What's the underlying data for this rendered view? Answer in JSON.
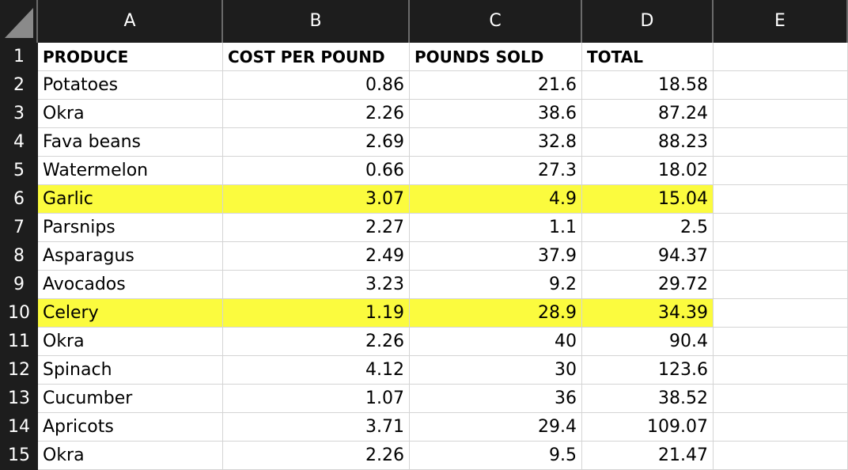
{
  "columns": [
    "A",
    "B",
    "C",
    "D",
    "E"
  ],
  "row_numbers": [
    "1",
    "2",
    "3",
    "4",
    "5",
    "6",
    "7",
    "8",
    "9",
    "10",
    "11",
    "12",
    "13",
    "14",
    "15"
  ],
  "header": {
    "produce": "PRODUCE",
    "cost": "COST PER POUND",
    "pounds": "POUNDS SOLD",
    "total": "TOTAL"
  },
  "rows": [
    {
      "produce": "Potatoes",
      "cost": "0.86",
      "pounds": "21.6",
      "total": "18.58",
      "highlight": false
    },
    {
      "produce": "Okra",
      "cost": "2.26",
      "pounds": "38.6",
      "total": "87.24",
      "highlight": false
    },
    {
      "produce": "Fava beans",
      "cost": "2.69",
      "pounds": "32.8",
      "total": "88.23",
      "highlight": false
    },
    {
      "produce": "Watermelon",
      "cost": "0.66",
      "pounds": "27.3",
      "total": "18.02",
      "highlight": false
    },
    {
      "produce": "Garlic",
      "cost": "3.07",
      "pounds": "4.9",
      "total": "15.04",
      "highlight": true
    },
    {
      "produce": "Parsnips",
      "cost": "2.27",
      "pounds": "1.1",
      "total": "2.5",
      "highlight": false
    },
    {
      "produce": "Asparagus",
      "cost": "2.49",
      "pounds": "37.9",
      "total": "94.37",
      "highlight": false
    },
    {
      "produce": "Avocados",
      "cost": "3.23",
      "pounds": "9.2",
      "total": "29.72",
      "highlight": false
    },
    {
      "produce": "Celery",
      "cost": "1.19",
      "pounds": "28.9",
      "total": "34.39",
      "highlight": true
    },
    {
      "produce": "Okra",
      "cost": "2.26",
      "pounds": "40",
      "total": "90.4",
      "highlight": false
    },
    {
      "produce": "Spinach",
      "cost": "4.12",
      "pounds": "30",
      "total": "123.6",
      "highlight": false
    },
    {
      "produce": "Cucumber",
      "cost": "1.07",
      "pounds": "36",
      "total": "38.52",
      "highlight": false
    },
    {
      "produce": "Apricots",
      "cost": "3.71",
      "pounds": "29.4",
      "total": "109.07",
      "highlight": false
    },
    {
      "produce": "Okra",
      "cost": "2.26",
      "pounds": "9.5",
      "total": "21.47",
      "highlight": false
    }
  ],
  "colors": {
    "header_bg": "#1d1d1d",
    "header_text": "#ffffff",
    "highlight": "#fbfb3e",
    "gridline": "#d4d4d4"
  }
}
